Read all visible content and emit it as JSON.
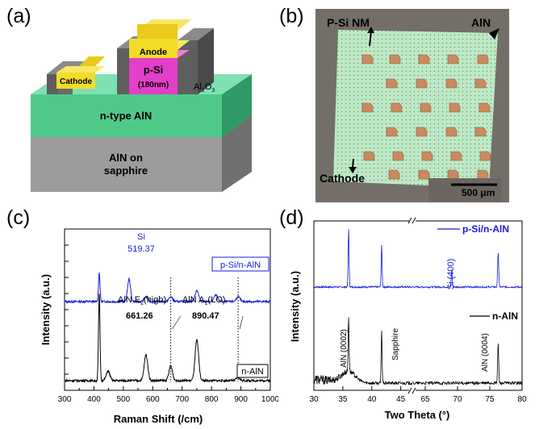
{
  "figure": {
    "panel_a_label": "(a)",
    "panel_b_label": "(b)",
    "panel_c_label": "(c)",
    "panel_d_label": "(d)"
  },
  "panel_a": {
    "anode": "Anode",
    "cathode": "Cathode",
    "psi": "p-Si",
    "psi_thickness": "(180nm)",
    "al2o3": "Al",
    "al2o3_sub2": "2",
    "al2o3_o": "O",
    "al2o3_sub3": "3",
    "ntype": "n-type AlN",
    "substrate_line1": "AlN on",
    "substrate_line2": "sapphire",
    "colors": {
      "metal": "#f2dc2a",
      "psi": "#e33fc8",
      "ntype": "#4fc98a",
      "substrate": "#9c9c9c",
      "oxide": "#6a6a6a"
    }
  },
  "panel_b": {
    "psi_nm": "P-Si NM",
    "aln": "AlN",
    "cathode": "Cathode",
    "scale_bar": "500 μm"
  },
  "chart_data": [
    {
      "type": "line",
      "title": "",
      "xlabel": "Raman Shift (/cm)",
      "ylabel": "Intensity (a.u.)",
      "xlim": [
        300,
        1000
      ],
      "ylim": [
        0,
        100
      ],
      "x_ticks": [
        "300",
        "400",
        "500",
        "600",
        "700",
        "800",
        "900",
        "1000"
      ],
      "series": [
        {
          "name": "p-Si/n-AlN",
          "color": "#1a1adf",
          "offset": 55,
          "peaks": [
            [
              418,
              18
            ],
            [
              519.37,
              14
            ],
            [
              577,
              3
            ],
            [
              661.26,
              3
            ],
            [
              750,
              7
            ],
            [
              815,
              4
            ],
            [
              890.47,
              3
            ]
          ]
        },
        {
          "name": "n-AlN",
          "color": "#000000",
          "offset": 6,
          "peaks": [
            [
              418,
              54
            ],
            [
              448,
              6
            ],
            [
              577,
              16
            ],
            [
              661.26,
              9
            ],
            [
              750,
              25
            ],
            [
              890.47,
              2
            ]
          ]
        }
      ],
      "annotations": {
        "si_label": "Si",
        "si_value": "519.37",
        "e2_prefix": "AlN E",
        "e2_sub": "2",
        "e2_suffix": "(high)",
        "e2_value": "661.26",
        "a1_prefix": "AlN A",
        "a1_sub": "1",
        "a1_suffix": "(LO)",
        "a1_value": "890.47"
      },
      "legend": [
        "p-Si/n-AlN",
        "n-AlN"
      ]
    },
    {
      "type": "line",
      "title": "",
      "xlabel": "Two Theta (°)",
      "ylabel": "Intensity (a.u.)",
      "broken_axis": true,
      "x_ticks": [
        "30",
        "35",
        "40",
        "45",
        "65",
        "70",
        "75",
        "80"
      ],
      "series": [
        {
          "name": "p-Si/n-AlN",
          "color": "#1a1adf",
          "peaks": [
            [
              36.0,
              100
            ],
            [
              41.7,
              70
            ],
            [
              69.1,
              30
            ],
            [
              76.3,
              60
            ]
          ]
        },
        {
          "name": "n-AlN",
          "color": "#000000",
          "peaks": [
            [
              36.0,
              72
            ],
            [
              41.7,
              70
            ],
            [
              76.3,
              52
            ]
          ]
        }
      ],
      "annotations": {
        "si400": "Si (400)",
        "aln0002": "AlN (0002)",
        "sapphire": "Sapphire",
        "aln0004": "AlN (0004)"
      },
      "legend": [
        "p-Si/n-AlN",
        "n-AlN"
      ]
    }
  ]
}
